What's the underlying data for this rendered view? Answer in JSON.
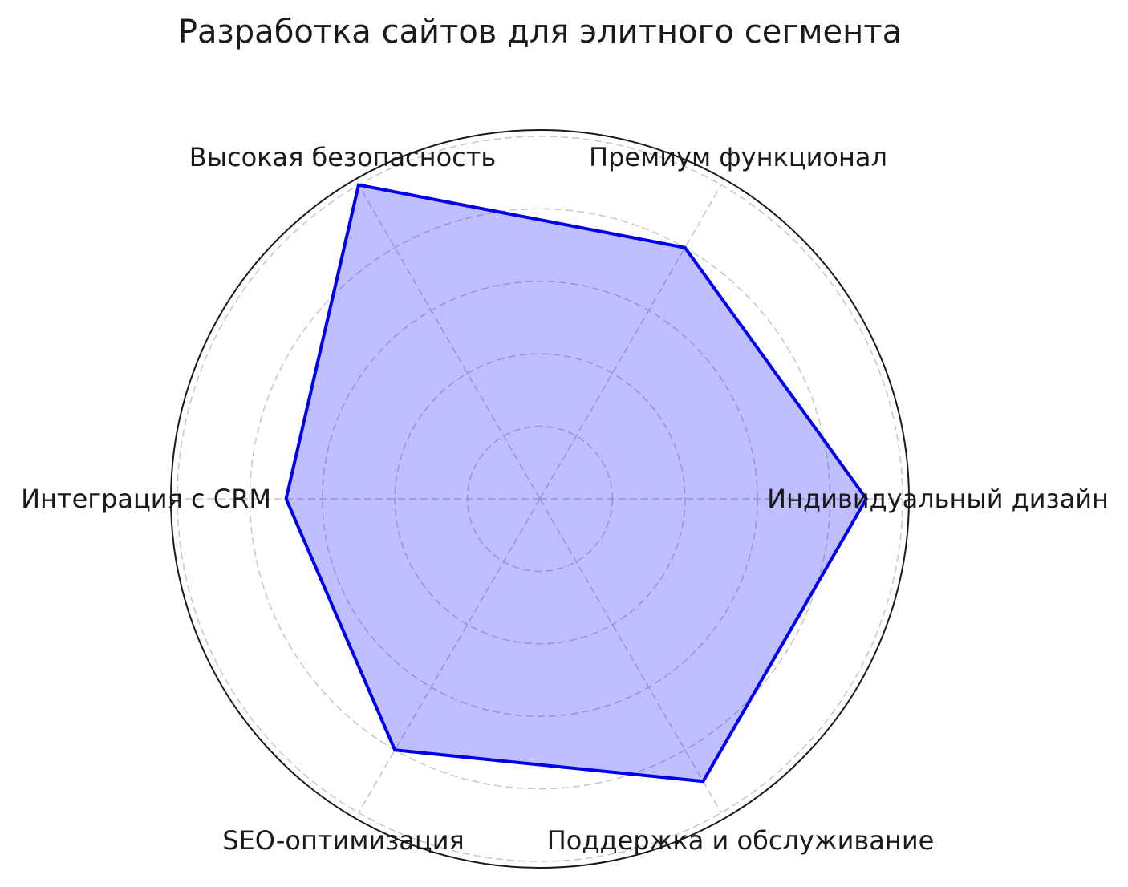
{
  "chart_data": {
    "type": "radar",
    "title": "Разработка сайтов для элитного сегмента",
    "categories": [
      "Индивидуальный дизайн",
      "Премиум функционал",
      "Высокая безопасность",
      "Интеграция с CRM",
      "SEO-оптимизация",
      "Поддержка и обслуживание"
    ],
    "values": [
      9,
      8,
      10,
      7,
      8,
      9
    ],
    "angles_deg": [
      0,
      60,
      120,
      180,
      240,
      300
    ],
    "scale": {
      "min": 0,
      "max": 10,
      "ring_ticks": [
        2,
        4,
        6,
        8,
        10
      ],
      "tick_labels_visible": false
    },
    "grid": true,
    "legend": null,
    "colors": {
      "fill": "rgba(0,0,255,0.25)",
      "stroke": "#0000ee",
      "grid": "#c6c6c6",
      "outline": "#1a1a1a",
      "text": "#1a1a1a",
      "background": "#ffffff"
    }
  }
}
